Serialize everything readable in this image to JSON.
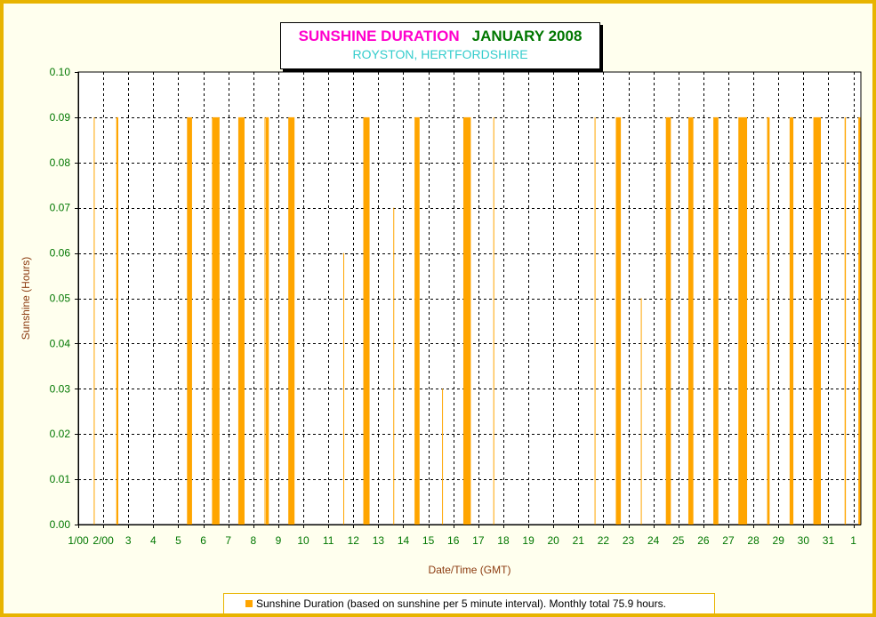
{
  "title": {
    "main": "SUNSHINE DURATION",
    "month": "JANUARY 2008",
    "subtitle": "ROYSTON, HERTFORDSHIRE"
  },
  "legend": {
    "label": "Sunshine Duration (based on sunshine per 5 minute interval). Monthly total 75.9 hours."
  },
  "colors": {
    "bar": "#ffa500",
    "tick_text": "#007700",
    "axis_title": "#8b3a0f",
    "frame": "#e8b400",
    "plot_bg": "#ffffff"
  },
  "chart_data": {
    "type": "bar",
    "title": "SUNSHINE DURATION JANUARY 2008",
    "subtitle": "ROYSTON, HERTFORDSHIRE",
    "xlabel": "Date/Time (GMT)",
    "ylabel": "Sunshine (Hours)",
    "ylim": [
      0,
      0.1
    ],
    "yticks": [
      "0.00",
      "0.01",
      "0.02",
      "0.03",
      "0.04",
      "0.05",
      "0.06",
      "0.07",
      "0.08",
      "0.09",
      "0.10"
    ],
    "xlim_days": [
      1,
      32.3
    ],
    "xticks": [
      {
        "day": 1,
        "label": "1/00"
      },
      {
        "day": 2,
        "label": "2/00"
      },
      {
        "day": 3,
        "label": "3"
      },
      {
        "day": 4,
        "label": "4"
      },
      {
        "day": 5,
        "label": "5"
      },
      {
        "day": 6,
        "label": "6"
      },
      {
        "day": 7,
        "label": "7"
      },
      {
        "day": 8,
        "label": "8"
      },
      {
        "day": 9,
        "label": "9"
      },
      {
        "day": 10,
        "label": "10"
      },
      {
        "day": 11,
        "label": "11"
      },
      {
        "day": 12,
        "label": "12"
      },
      {
        "day": 13,
        "label": "13"
      },
      {
        "day": 14,
        "label": "14"
      },
      {
        "day": 15,
        "label": "15"
      },
      {
        "day": 16,
        "label": "16"
      },
      {
        "day": 17,
        "label": "17"
      },
      {
        "day": 18,
        "label": "18"
      },
      {
        "day": 19,
        "label": "19"
      },
      {
        "day": 20,
        "label": "20"
      },
      {
        "day": 21,
        "label": "21"
      },
      {
        "day": 22,
        "label": "22"
      },
      {
        "day": 23,
        "label": "23"
      },
      {
        "day": 24,
        "label": "24"
      },
      {
        "day": 25,
        "label": "25"
      },
      {
        "day": 26,
        "label": "26"
      },
      {
        "day": 27,
        "label": "27"
      },
      {
        "day": 28,
        "label": "28"
      },
      {
        "day": 29,
        "label": "29"
      },
      {
        "day": 30,
        "label": "30"
      },
      {
        "day": 31,
        "label": "31"
      },
      {
        "day": 32,
        "label": "1"
      }
    ],
    "grid": true,
    "legend_position": "bottom",
    "series": [
      {
        "name": "Sunshine Duration",
        "units": "hours per 5 minute interval",
        "bars": [
          {
            "start": 1.62,
            "end": 1.64,
            "value": 0.09
          },
          {
            "start": 2.52,
            "end": 2.6,
            "value": 0.09
          },
          {
            "start": 5.35,
            "end": 5.55,
            "value": 0.09
          },
          {
            "start": 6.35,
            "end": 6.65,
            "value": 0.09
          },
          {
            "start": 7.4,
            "end": 7.65,
            "value": 0.09
          },
          {
            "start": 8.45,
            "end": 8.48,
            "value": 0.09
          },
          {
            "start": 8.5,
            "end": 8.62,
            "value": 0.09
          },
          {
            "start": 9.4,
            "end": 9.65,
            "value": 0.09
          },
          {
            "start": 11.6,
            "end": 11.63,
            "value": 0.06
          },
          {
            "start": 12.4,
            "end": 12.65,
            "value": 0.09
          },
          {
            "start": 13.6,
            "end": 13.63,
            "value": 0.07
          },
          {
            "start": 14.45,
            "end": 14.65,
            "value": 0.09
          },
          {
            "start": 15.55,
            "end": 15.57,
            "value": 0.03
          },
          {
            "start": 16.4,
            "end": 16.7,
            "value": 0.09
          },
          {
            "start": 17.6,
            "end": 17.62,
            "value": 0.09
          },
          {
            "start": 21.65,
            "end": 21.68,
            "value": 0.09
          },
          {
            "start": 22.5,
            "end": 22.7,
            "value": 0.09
          },
          {
            "start": 23.5,
            "end": 23.52,
            "value": 0.05
          },
          {
            "start": 24.5,
            "end": 24.7,
            "value": 0.09
          },
          {
            "start": 25.4,
            "end": 25.6,
            "value": 0.09
          },
          {
            "start": 26.4,
            "end": 26.6,
            "value": 0.09
          },
          {
            "start": 27.4,
            "end": 27.75,
            "value": 0.09
          },
          {
            "start": 28.55,
            "end": 28.65,
            "value": 0.09
          },
          {
            "start": 29.45,
            "end": 29.6,
            "value": 0.09
          },
          {
            "start": 30.4,
            "end": 30.7,
            "value": 0.09
          },
          {
            "start": 31.65,
            "end": 31.7,
            "value": 0.09
          },
          {
            "start": 32.2,
            "end": 32.28,
            "value": 0.09
          }
        ]
      }
    ]
  }
}
